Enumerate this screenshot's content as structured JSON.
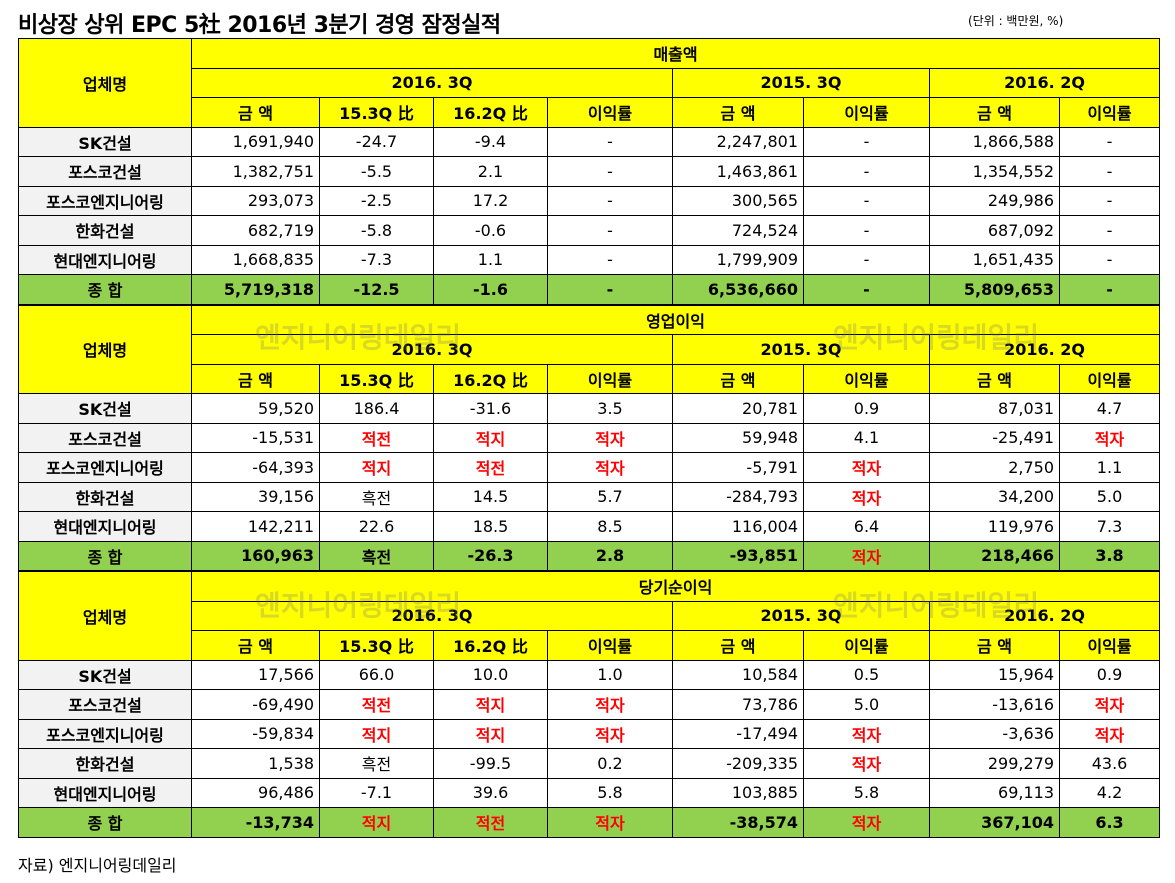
{
  "title": "비상장 상위 EPC 5社 2016년 3분기 경영 잠정실적",
  "unit": "(단위 : 백만원, %)",
  "source": "자료) 엔지니어링데일리",
  "watermark": "엔지니어링데일리",
  "colors": {
    "header": "#ffff00",
    "total_row": "#92d050",
    "name_cell": "#f2f2f2",
    "negative_marker": "#ff0000"
  },
  "company_header": "업체명",
  "period_headers": [
    "2016. 3Q",
    "2015. 3Q",
    "2016. 2Q"
  ],
  "sub_headers": [
    "금 액",
    "15.3Q 比",
    "16.2Q 比",
    "이익률",
    "금 액",
    "이익률",
    "금 액",
    "이익률"
  ],
  "sections": [
    {
      "metric": "매출액",
      "rows": [
        {
          "company": "SK건설",
          "cells": [
            "1,691,940",
            "-24.7",
            "-9.4",
            "-",
            "2,247,801",
            "-",
            "1,866,588",
            "-"
          ]
        },
        {
          "company": "포스코건설",
          "cells": [
            "1,382,751",
            "-5.5",
            "2.1",
            "-",
            "1,463,861",
            "-",
            "1,354,552",
            "-"
          ]
        },
        {
          "company": "포스코엔지니어링",
          "cells": [
            "293,073",
            "-2.5",
            "17.2",
            "-",
            "300,565",
            "-",
            "249,986",
            "-"
          ]
        },
        {
          "company": "한화건설",
          "cells": [
            "682,719",
            "-5.8",
            "-0.6",
            "-",
            "724,524",
            "-",
            "687,092",
            "-"
          ]
        },
        {
          "company": "현대엔지니어링",
          "cells": [
            "1,668,835",
            "-7.3",
            "1.1",
            "-",
            "1,799,909",
            "-",
            "1,651,435",
            "-"
          ]
        }
      ],
      "total": {
        "company": "종 합",
        "cells": [
          "5,719,318",
          "-12.5",
          "-1.6",
          "-",
          "6,536,660",
          "-",
          "5,809,653",
          "-"
        ]
      }
    },
    {
      "metric": "영업이익",
      "rows": [
        {
          "company": "SK건설",
          "cells": [
            "59,520",
            "186.4",
            "-31.6",
            "3.5",
            "20,781",
            "0.9",
            "87,031",
            "4.7"
          ]
        },
        {
          "company": "포스코건설",
          "cells": [
            "-15,531",
            "적전",
            "적지",
            "적자",
            "59,948",
            "4.1",
            "-25,491",
            "적자"
          ]
        },
        {
          "company": "포스코엔지니어링",
          "cells": [
            "-64,393",
            "적지",
            "적전",
            "적자",
            "-5,791",
            "적자",
            "2,750",
            "1.1"
          ]
        },
        {
          "company": "한화건설",
          "cells": [
            "39,156",
            "흑전",
            "14.5",
            "5.7",
            "-284,793",
            "적자",
            "34,200",
            "5.0"
          ]
        },
        {
          "company": "현대엔지니어링",
          "cells": [
            "142,211",
            "22.6",
            "18.5",
            "8.5",
            "116,004",
            "6.4",
            "119,976",
            "7.3"
          ]
        }
      ],
      "total": {
        "company": "종 합",
        "cells": [
          "160,963",
          "흑전",
          "-26.3",
          "2.8",
          "-93,851",
          "적자",
          "218,466",
          "3.8"
        ]
      }
    },
    {
      "metric": "당기순이익",
      "rows": [
        {
          "company": "SK건설",
          "cells": [
            "17,566",
            "66.0",
            "10.0",
            "1.0",
            "10,584",
            "0.5",
            "15,964",
            "0.9"
          ]
        },
        {
          "company": "포스코건설",
          "cells": [
            "-69,490",
            "적전",
            "적지",
            "적자",
            "73,786",
            "5.0",
            "-13,616",
            "적자"
          ]
        },
        {
          "company": "포스코엔지니어링",
          "cells": [
            "-59,834",
            "적지",
            "적지",
            "적자",
            "-17,494",
            "적자",
            "-3,636",
            "적자"
          ]
        },
        {
          "company": "한화건설",
          "cells": [
            "1,538",
            "흑전",
            "-99.5",
            "0.2",
            "-209,335",
            "적자",
            "299,279",
            "43.6"
          ]
        },
        {
          "company": "현대엔지니어링",
          "cells": [
            "96,486",
            "-7.1",
            "39.6",
            "5.8",
            "103,885",
            "5.8",
            "69,113",
            "4.2"
          ]
        }
      ],
      "total": {
        "company": "종 합",
        "cells": [
          "-13,734",
          "적지",
          "적전",
          "적자",
          "-38,574",
          "적자",
          "367,104",
          "6.3"
        ]
      }
    }
  ]
}
